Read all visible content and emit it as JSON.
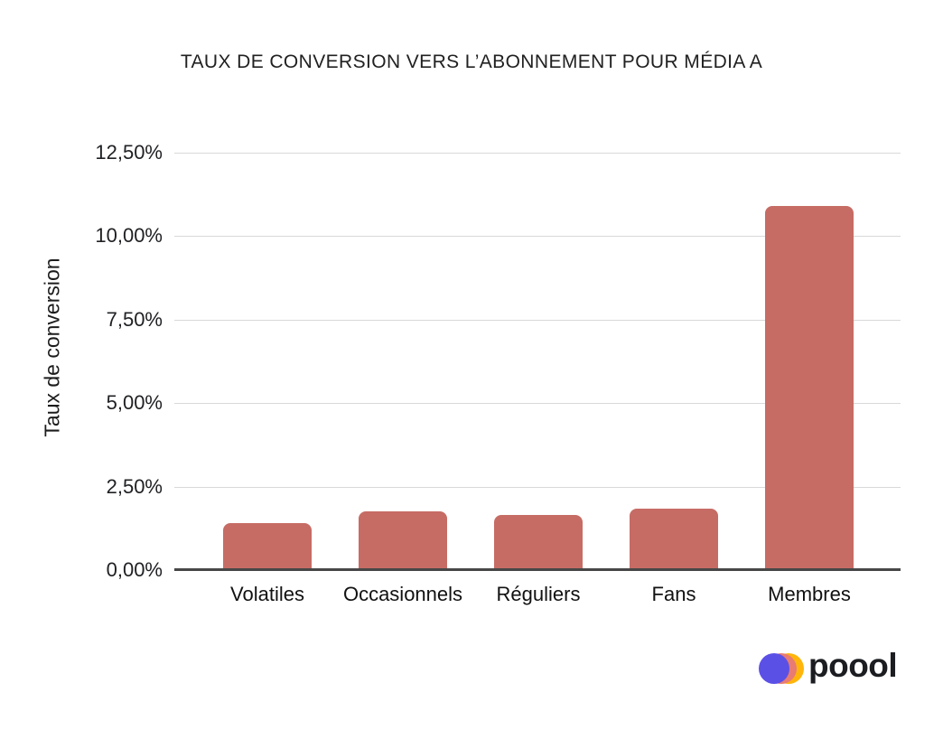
{
  "chart_data": {
    "type": "bar",
    "title": "TAUX DE CONVERSION VERS L’ABONNEMENT POUR MÉDIA A",
    "categories": [
      "Volatiles",
      "Occasionnels",
      "Réguliers",
      "Fans",
      "Membres"
    ],
    "values": [
      1.4,
      1.75,
      1.65,
      1.85,
      10.9
    ],
    "xlabel": "",
    "ylabel": "Taux de conversion",
    "ylim": [
      0,
      12.5
    ],
    "yticks": [
      {
        "label": "0,00%",
        "value": 0
      },
      {
        "label": "2,50%",
        "value": 2.5
      },
      {
        "label": "5,00%",
        "value": 5
      },
      {
        "label": "7,50%",
        "value": 7.5
      },
      {
        "label": "10,00%",
        "value": 10
      },
      {
        "label": "12,50%",
        "value": 12.5
      }
    ],
    "grid": true,
    "legend": false,
    "colors": {
      "bar": "#c66c64",
      "grid": "#d9d9d9",
      "axis": "#474747",
      "text": "#212121"
    }
  },
  "logo": {
    "text": "poool",
    "circle_colors": [
      "#5b50e6",
      "#e87b72",
      "#ffb50a"
    ],
    "text_color": "#1b1d21"
  }
}
